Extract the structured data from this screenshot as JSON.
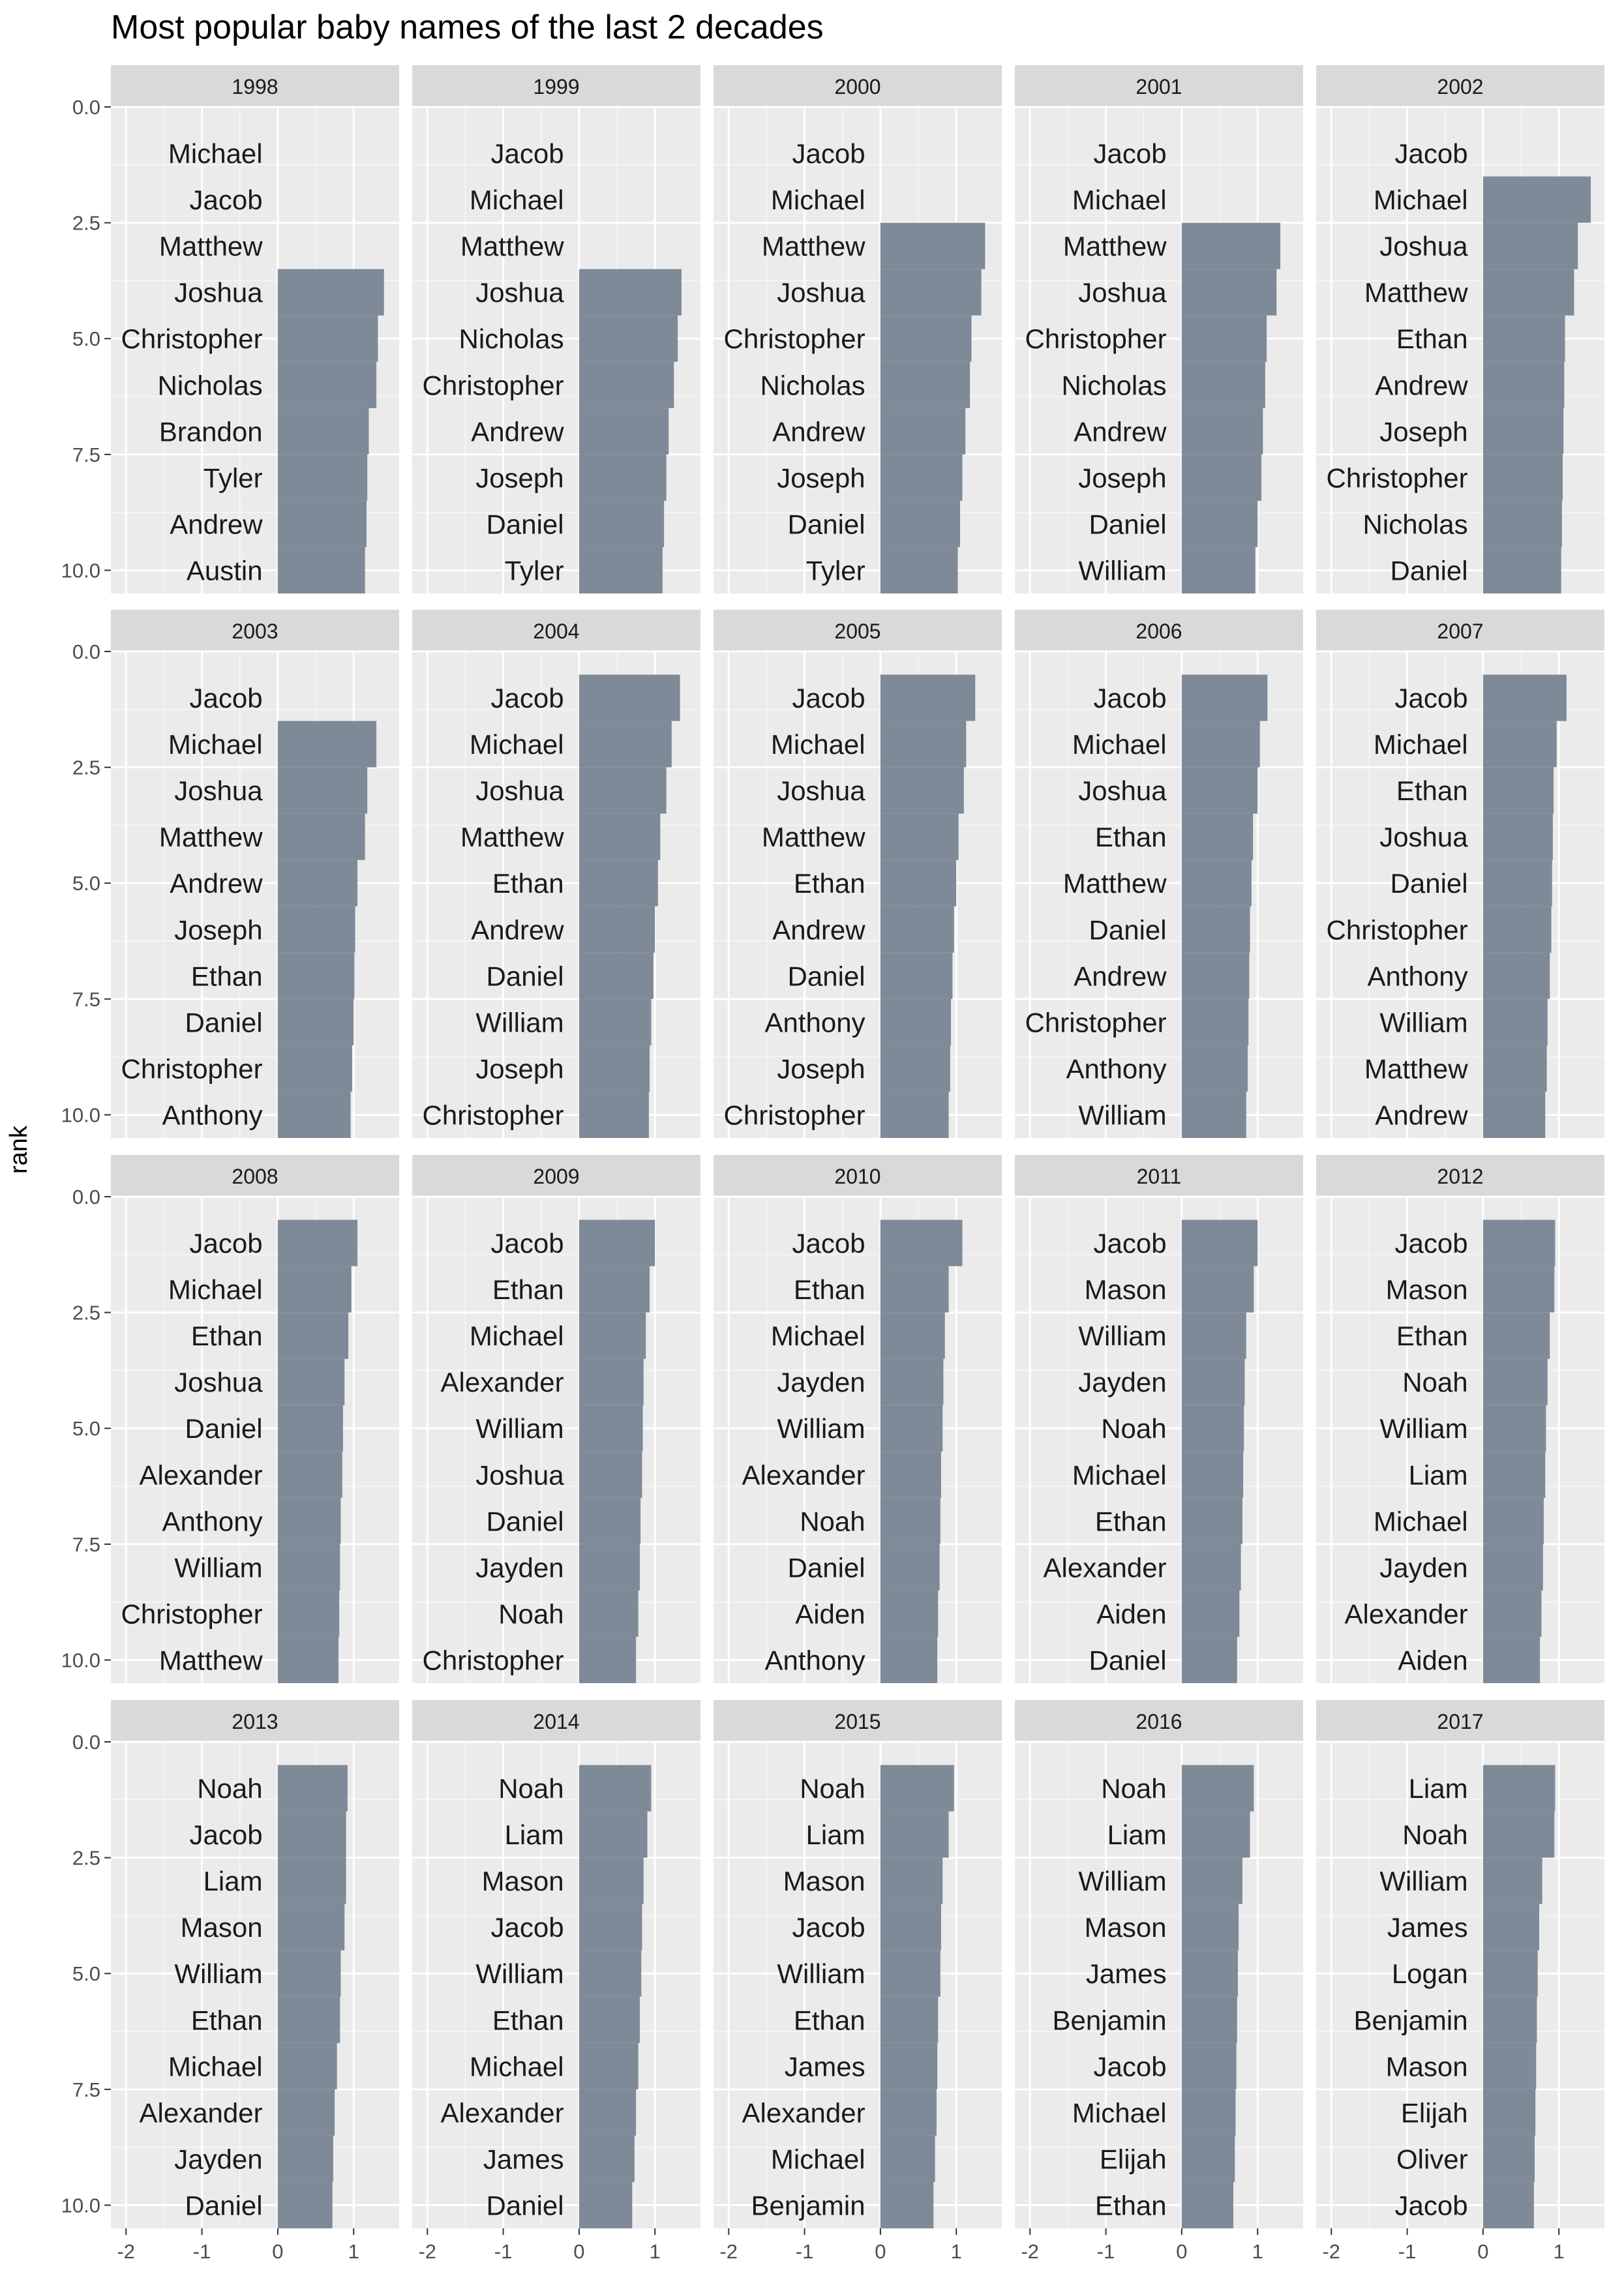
{
  "chart_data": {
    "type": "bar",
    "title": "Most popular baby names of the last 2 decades",
    "xlabel": "",
    "ylabel": "rank",
    "xlim": [
      -2.2,
      1.6
    ],
    "ylim": [
      0,
      10.5
    ],
    "x_ticks": [
      "-2",
      "-1",
      "0",
      "1"
    ],
    "y_ticks": [
      "0.0",
      "2.5",
      "5.0",
      "7.5",
      "10.0"
    ],
    "x_tick_values": [
      -2,
      -1,
      0,
      1
    ],
    "y_tick_values": [
      0,
      2.5,
      5,
      7.5,
      10
    ],
    "grid": true,
    "colors": {
      "bar": "#7f8a98",
      "panel_bg": "#ebebeb",
      "strip_bg": "#d9d9d9",
      "grid_major": "#ffffff",
      "label_text": "#1a1a1a",
      "tick_text": "#4d4d4d"
    },
    "panels": [
      {
        "year": "1998",
        "names": [
          "Michael",
          "Jacob",
          "Matthew",
          "Joshua",
          "Christopher",
          "Nicholas",
          "Brandon",
          "Tyler",
          "Andrew",
          "Austin"
        ],
        "values": [
          null,
          null,
          null,
          1.4,
          1.32,
          1.3,
          1.2,
          1.18,
          1.17,
          1.15
        ]
      },
      {
        "year": "1999",
        "names": [
          "Jacob",
          "Michael",
          "Matthew",
          "Joshua",
          "Nicholas",
          "Christopher",
          "Andrew",
          "Joseph",
          "Daniel",
          "Tyler"
        ],
        "values": [
          null,
          null,
          null,
          1.35,
          1.3,
          1.25,
          1.18,
          1.15,
          1.12,
          1.1
        ]
      },
      {
        "year": "2000",
        "names": [
          "Jacob",
          "Michael",
          "Matthew",
          "Joshua",
          "Christopher",
          "Nicholas",
          "Andrew",
          "Joseph",
          "Daniel",
          "Tyler"
        ],
        "values": [
          null,
          null,
          1.38,
          1.33,
          1.2,
          1.18,
          1.12,
          1.08,
          1.05,
          1.02
        ]
      },
      {
        "year": "2001",
        "names": [
          "Jacob",
          "Michael",
          "Matthew",
          "Joshua",
          "Christopher",
          "Nicholas",
          "Andrew",
          "Joseph",
          "Daniel",
          "William"
        ],
        "values": [
          null,
          null,
          1.3,
          1.25,
          1.12,
          1.1,
          1.07,
          1.05,
          1.0,
          0.97
        ]
      },
      {
        "year": "2002",
        "names": [
          "Jacob",
          "Michael",
          "Joshua",
          "Matthew",
          "Ethan",
          "Andrew",
          "Joseph",
          "Christopher",
          "Nicholas",
          "Daniel"
        ],
        "values": [
          null,
          1.42,
          1.25,
          1.2,
          1.08,
          1.07,
          1.06,
          1.05,
          1.04,
          1.03
        ]
      },
      {
        "year": "2003",
        "names": [
          "Jacob",
          "Michael",
          "Joshua",
          "Matthew",
          "Andrew",
          "Joseph",
          "Ethan",
          "Daniel",
          "Christopher",
          "Anthony"
        ],
        "values": [
          null,
          1.3,
          1.18,
          1.15,
          1.05,
          1.02,
          1.01,
          1.0,
          0.98,
          0.96
        ]
      },
      {
        "year": "2004",
        "names": [
          "Jacob",
          "Michael",
          "Joshua",
          "Matthew",
          "Ethan",
          "Andrew",
          "Daniel",
          "William",
          "Joseph",
          "Christopher"
        ],
        "values": [
          1.33,
          1.22,
          1.15,
          1.07,
          1.04,
          1.0,
          0.98,
          0.95,
          0.93,
          0.92
        ]
      },
      {
        "year": "2005",
        "names": [
          "Jacob",
          "Michael",
          "Joshua",
          "Matthew",
          "Ethan",
          "Andrew",
          "Daniel",
          "Anthony",
          "Joseph",
          "Christopher"
        ],
        "values": [
          1.25,
          1.13,
          1.1,
          1.03,
          1.0,
          0.97,
          0.95,
          0.93,
          0.92,
          0.9
        ]
      },
      {
        "year": "2006",
        "names": [
          "Jacob",
          "Michael",
          "Joshua",
          "Ethan",
          "Matthew",
          "Daniel",
          "Andrew",
          "Christopher",
          "Anthony",
          "William"
        ],
        "values": [
          1.13,
          1.03,
          1.0,
          0.94,
          0.92,
          0.9,
          0.89,
          0.88,
          0.87,
          0.85
        ]
      },
      {
        "year": "2007",
        "names": [
          "Jacob",
          "Michael",
          "Ethan",
          "Joshua",
          "Daniel",
          "Christopher",
          "Anthony",
          "William",
          "Matthew",
          "Andrew"
        ],
        "values": [
          1.1,
          0.97,
          0.93,
          0.92,
          0.91,
          0.9,
          0.88,
          0.85,
          0.84,
          0.82
        ]
      },
      {
        "year": "2008",
        "names": [
          "Jacob",
          "Michael",
          "Ethan",
          "Joshua",
          "Daniel",
          "Alexander",
          "Anthony",
          "William",
          "Christopher",
          "Matthew"
        ],
        "values": [
          1.05,
          0.97,
          0.93,
          0.88,
          0.86,
          0.85,
          0.83,
          0.82,
          0.81,
          0.8
        ]
      },
      {
        "year": "2009",
        "names": [
          "Jacob",
          "Ethan",
          "Michael",
          "Alexander",
          "William",
          "Joshua",
          "Daniel",
          "Jayden",
          "Noah",
          "Christopher"
        ],
        "values": [
          1.0,
          0.93,
          0.88,
          0.85,
          0.84,
          0.83,
          0.81,
          0.8,
          0.78,
          0.75
        ]
      },
      {
        "year": "2010",
        "names": [
          "Jacob",
          "Ethan",
          "Michael",
          "Jayden",
          "William",
          "Alexander",
          "Noah",
          "Daniel",
          "Aiden",
          "Anthony"
        ],
        "values": [
          1.08,
          0.9,
          0.85,
          0.83,
          0.82,
          0.8,
          0.79,
          0.78,
          0.76,
          0.75
        ]
      },
      {
        "year": "2011",
        "names": [
          "Jacob",
          "Mason",
          "William",
          "Jayden",
          "Noah",
          "Michael",
          "Ethan",
          "Alexander",
          "Aiden",
          "Daniel"
        ],
        "values": [
          1.0,
          0.95,
          0.85,
          0.83,
          0.82,
          0.81,
          0.8,
          0.78,
          0.76,
          0.73
        ]
      },
      {
        "year": "2012",
        "names": [
          "Jacob",
          "Mason",
          "Ethan",
          "Noah",
          "William",
          "Liam",
          "Michael",
          "Jayden",
          "Alexander",
          "Aiden"
        ],
        "values": [
          0.95,
          0.94,
          0.88,
          0.85,
          0.83,
          0.82,
          0.8,
          0.79,
          0.77,
          0.75
        ]
      },
      {
        "year": "2013",
        "names": [
          "Noah",
          "Jacob",
          "Liam",
          "Mason",
          "William",
          "Ethan",
          "Michael",
          "Alexander",
          "Jayden",
          "Daniel"
        ],
        "values": [
          0.92,
          0.9,
          0.9,
          0.88,
          0.83,
          0.82,
          0.78,
          0.75,
          0.73,
          0.72
        ]
      },
      {
        "year": "2014",
        "names": [
          "Noah",
          "Liam",
          "Mason",
          "Jacob",
          "William",
          "Ethan",
          "Michael",
          "Alexander",
          "James",
          "Daniel"
        ],
        "values": [
          0.95,
          0.9,
          0.85,
          0.83,
          0.82,
          0.8,
          0.78,
          0.75,
          0.73,
          0.7
        ]
      },
      {
        "year": "2015",
        "names": [
          "Noah",
          "Liam",
          "Mason",
          "Jacob",
          "William",
          "Ethan",
          "James",
          "Alexander",
          "Michael",
          "Benjamin"
        ],
        "values": [
          0.97,
          0.9,
          0.82,
          0.8,
          0.79,
          0.76,
          0.75,
          0.74,
          0.72,
          0.7
        ]
      },
      {
        "year": "2016",
        "names": [
          "Noah",
          "Liam",
          "William",
          "Mason",
          "James",
          "Benjamin",
          "Jacob",
          "Michael",
          "Elijah",
          "Ethan"
        ],
        "values": [
          0.95,
          0.9,
          0.8,
          0.75,
          0.74,
          0.73,
          0.72,
          0.71,
          0.7,
          0.68
        ]
      },
      {
        "year": "2017",
        "names": [
          "Liam",
          "Noah",
          "William",
          "James",
          "Logan",
          "Benjamin",
          "Mason",
          "Elijah",
          "Oliver",
          "Jacob"
        ],
        "values": [
          0.95,
          0.94,
          0.78,
          0.74,
          0.72,
          0.71,
          0.7,
          0.69,
          0.68,
          0.67
        ]
      }
    ]
  }
}
